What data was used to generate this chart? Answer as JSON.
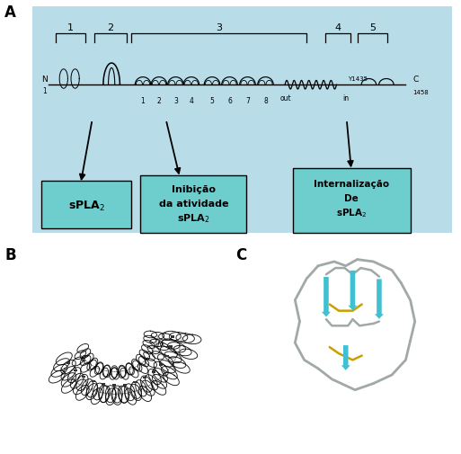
{
  "bg_color": "#ffffff",
  "panel_A_bg": "#b8dde8",
  "box_bg": "#6ecece",
  "box_border": "#000000",
  "label_A": "A",
  "label_B": "B",
  "label_C": "C",
  "box1_text": "sPLA$_2$",
  "box2_line1": "Inibição",
  "box2_line2": "da atividade",
  "box2_line3": "sPLA$_2$",
  "box3_line1": "Internalização",
  "box3_line2": "De",
  "box3_line3": "sPLA$_2$",
  "helix_color": "#555555",
  "connector_color": "#333333",
  "strand_color": "#40c0d0",
  "gold_color": "#c8a000",
  "backbone_color": "#a0a8a8"
}
